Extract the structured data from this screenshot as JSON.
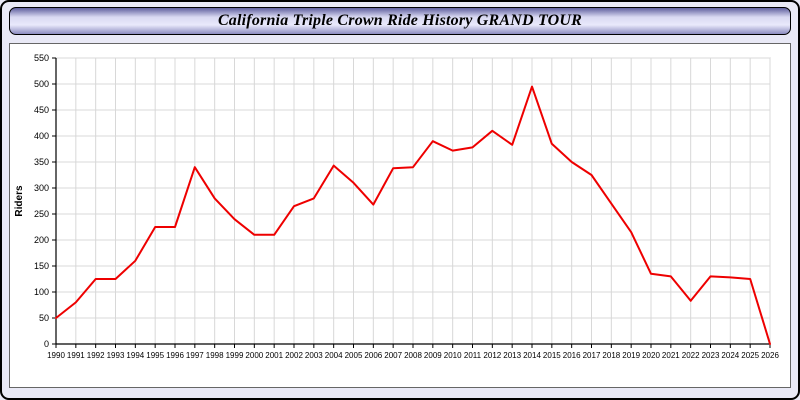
{
  "page": {
    "title": "California Triple Crown Ride History GRAND TOUR"
  },
  "chart_data": {
    "type": "line",
    "title": "California Triple Crown Ride History GRAND TOUR",
    "xlabel": "",
    "ylabel": "Riders",
    "x": [
      1990,
      1991,
      1992,
      1993,
      1994,
      1995,
      1996,
      1997,
      1998,
      1999,
      2000,
      2001,
      2002,
      2003,
      2004,
      2005,
      2006,
      2007,
      2008,
      2009,
      2010,
      2011,
      2012,
      2013,
      2014,
      2015,
      2016,
      2017,
      2018,
      2019,
      2020,
      2021,
      2022,
      2023,
      2024,
      2025,
      2026
    ],
    "series": [
      {
        "name": "Riders",
        "color": "#ee0000",
        "values": [
          50,
          80,
          125,
          125,
          160,
          225,
          225,
          340,
          280,
          240,
          210,
          210,
          265,
          280,
          343,
          310,
          268,
          338,
          340,
          390,
          372,
          378,
          410,
          383,
          495,
          385,
          350,
          325,
          270,
          215,
          135,
          130,
          83,
          130,
          128,
          125,
          0
        ]
      }
    ],
    "ylim": [
      0,
      550
    ],
    "ytick_step": 50,
    "grid": true,
    "legend": "none",
    "grid_color": "#d8d8d8",
    "axis_color": "#000000",
    "plot_background": "#ffffff"
  }
}
